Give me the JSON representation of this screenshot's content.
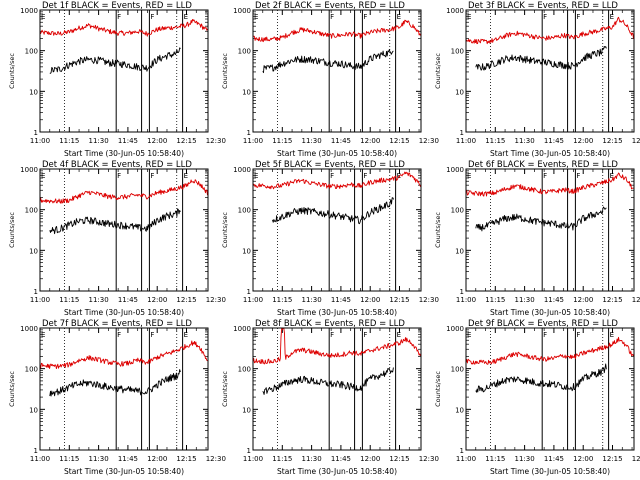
{
  "chart_data": {
    "type": "line",
    "layout": "3x3 grid of panels",
    "scale": "log-y",
    "ylim": [
      1,
      1000
    ],
    "y_ticks": [
      1,
      10,
      100,
      1000
    ],
    "y_tick_labels": [
      "1",
      "10",
      "100",
      "1000"
    ],
    "x_range_min": [
      0,
      86
    ],
    "x_ticks_min": [
      0,
      15,
      30,
      45,
      60,
      75,
      90
    ],
    "x_tick_labels": [
      "11:00",
      "11:15",
      "11:30",
      "11:45",
      "12:00",
      "12:15",
      "12:30"
    ],
    "dotted_marker_times_min": [
      12.5,
      70
    ],
    "solid_marker_times_min": [
      39,
      52,
      56,
      73
    ],
    "flag_labels": [
      {
        "t": 0,
        "text": "E"
      },
      {
        "t": 39,
        "text": "F"
      },
      {
        "t": 56,
        "text": "F"
      },
      {
        "t": 73,
        "text": "E"
      }
    ],
    "ylabel": "Counts/sec",
    "xlabel": "Start Time (30-Jun-05 10:58:40)",
    "series_colors": {
      "lld": "#dd0000",
      "events": "#000000"
    },
    "panels": [
      {
        "title": "Det 1f BLACK = Events, RED = LLD",
        "lld": {
          "t": [
            0,
            5,
            10,
            15,
            20,
            25,
            30,
            35,
            40,
            45,
            50,
            55,
            60,
            65,
            70,
            75,
            78,
            80,
            82,
            86
          ],
          "v": [
            280,
            270,
            260,
            290,
            360,
            420,
            350,
            300,
            270,
            270,
            300,
            260,
            330,
            360,
            380,
            420,
            520,
            480,
            430,
            300
          ]
        },
        "events": {
          "t": [
            5,
            10,
            15,
            20,
            25,
            30,
            35,
            40,
            45,
            50,
            55,
            60,
            65,
            70,
            72
          ],
          "v": [
            32,
            35,
            45,
            55,
            60,
            58,
            50,
            48,
            45,
            40,
            38,
            60,
            75,
            85,
            110
          ]
        }
      },
      {
        "title": "Det 2f BLACK = Events, RED = LLD",
        "lld": {
          "t": [
            0,
            5,
            10,
            15,
            20,
            25,
            30,
            35,
            40,
            45,
            50,
            55,
            60,
            65,
            70,
            75,
            78,
            80,
            82,
            86
          ],
          "v": [
            200,
            190,
            190,
            210,
            280,
            330,
            300,
            260,
            230,
            240,
            260,
            230,
            280,
            310,
            330,
            380,
            520,
            460,
            400,
            230
          ]
        },
        "events": {
          "t": [
            5,
            10,
            15,
            20,
            25,
            30,
            35,
            40,
            45,
            50,
            55,
            60,
            65,
            70,
            72
          ],
          "v": [
            35,
            38,
            48,
            58,
            62,
            60,
            55,
            50,
            48,
            42,
            40,
            62,
            78,
            90,
            115
          ]
        }
      },
      {
        "title": "Det 3f BLACK = Events, RED = LLD",
        "lld": {
          "t": [
            0,
            5,
            10,
            15,
            20,
            25,
            30,
            35,
            40,
            45,
            50,
            55,
            60,
            65,
            70,
            75,
            78,
            80,
            82,
            86
          ],
          "v": [
            180,
            170,
            165,
            180,
            230,
            270,
            250,
            220,
            200,
            210,
            240,
            210,
            260,
            290,
            330,
            380,
            600,
            520,
            420,
            210
          ]
        },
        "events": {
          "t": [
            5,
            10,
            15,
            20,
            25,
            30,
            35,
            40,
            45,
            50,
            55,
            60,
            65,
            70,
            72
          ],
          "v": [
            38,
            40,
            50,
            62,
            68,
            62,
            55,
            52,
            48,
            44,
            42,
            65,
            80,
            92,
            125
          ]
        }
      },
      {
        "title": "Det 4f BLACK = Events, RED = LLD",
        "lld": {
          "t": [
            0,
            5,
            10,
            15,
            20,
            25,
            30,
            35,
            40,
            45,
            50,
            55,
            60,
            65,
            70,
            75,
            78,
            80,
            82,
            86
          ],
          "v": [
            170,
            165,
            160,
            170,
            220,
            270,
            240,
            210,
            200,
            210,
            230,
            210,
            260,
            290,
            330,
            390,
            540,
            480,
            420,
            250
          ]
        },
        "events": {
          "t": [
            5,
            10,
            15,
            20,
            25,
            30,
            35,
            40,
            45,
            50,
            55,
            60,
            65,
            70,
            72
          ],
          "v": [
            30,
            33,
            42,
            52,
            55,
            50,
            45,
            42,
            40,
            36,
            34,
            55,
            70,
            80,
            110
          ]
        }
      },
      {
        "title": "Det 5f BLACK = Events, RED = LLD",
        "lld": {
          "t": [
            0,
            5,
            10,
            15,
            20,
            25,
            30,
            35,
            40,
            45,
            50,
            55,
            60,
            65,
            70,
            75,
            78,
            80,
            82,
            86
          ],
          "v": [
            400,
            390,
            370,
            390,
            470,
            520,
            450,
            410,
            370,
            380,
            420,
            380,
            470,
            520,
            560,
            620,
            800,
            720,
            640,
            400
          ]
        },
        "events": {
          "t": [
            10,
            15,
            20,
            25,
            30,
            35,
            40,
            45,
            50,
            55,
            60,
            65,
            70,
            72
          ],
          "v": [
            55,
            68,
            85,
            95,
            90,
            82,
            75,
            68,
            60,
            55,
            85,
            110,
            140,
            190
          ]
        }
      },
      {
        "title": "Det 6f BLACK = Events, RED = LLD",
        "lld": {
          "t": [
            0,
            5,
            10,
            15,
            20,
            25,
            30,
            35,
            40,
            45,
            50,
            55,
            60,
            65,
            70,
            75,
            78,
            80,
            82,
            86
          ],
          "v": [
            260,
            250,
            245,
            260,
            320,
            380,
            350,
            300,
            270,
            280,
            310,
            280,
            350,
            400,
            460,
            540,
            720,
            640,
            560,
            300
          ]
        },
        "events": {
          "t": [
            5,
            10,
            15,
            20,
            25,
            30,
            35,
            40,
            45,
            50,
            55,
            60,
            65,
            70,
            72
          ],
          "v": [
            35,
            38,
            48,
            60,
            65,
            60,
            52,
            48,
            45,
            40,
            38,
            60,
            75,
            90,
            120
          ]
        }
      },
      {
        "title": "Det 7f BLACK = Events, RED = LLD",
        "lld": {
          "t": [
            0,
            5,
            10,
            15,
            20,
            25,
            30,
            35,
            40,
            45,
            50,
            55,
            60,
            65,
            70,
            75,
            78,
            80,
            82,
            86
          ],
          "v": [
            120,
            115,
            115,
            125,
            160,
            185,
            165,
            145,
            130,
            135,
            160,
            140,
            190,
            230,
            280,
            360,
            430,
            400,
            330,
            150
          ]
        },
        "events": {
          "t": [
            5,
            10,
            15,
            20,
            25,
            30,
            35,
            40,
            45,
            50,
            55,
            60,
            65,
            70,
            72
          ],
          "v": [
            25,
            28,
            35,
            42,
            45,
            40,
            35,
            32,
            30,
            28,
            27,
            40,
            55,
            68,
            85
          ]
        }
      },
      {
        "title": "Det 8f BLACK = Events, RED = LLD",
        "lld": {
          "t": [
            0,
            5,
            10,
            14,
            14.5,
            16,
            16.5,
            20,
            25,
            30,
            35,
            40,
            45,
            50,
            55,
            60,
            65,
            70,
            75,
            78,
            80,
            82,
            86
          ],
          "v": [
            160,
            150,
            150,
            170,
            1000,
            1000,
            180,
            250,
            290,
            260,
            230,
            210,
            220,
            250,
            230,
            280,
            320,
            370,
            430,
            520,
            470,
            400,
            180
          ]
        },
        "events": {
          "t": [
            5,
            10,
            15,
            20,
            25,
            30,
            35,
            40,
            45,
            50,
            55,
            60,
            65,
            70,
            72
          ],
          "v": [
            28,
            32,
            40,
            50,
            55,
            50,
            45,
            42,
            40,
            36,
            34,
            55,
            70,
            85,
            105
          ]
        }
      },
      {
        "title": "Det 9f BLACK = Events, RED = LLD",
        "lld": {
          "t": [
            0,
            5,
            10,
            15,
            20,
            25,
            30,
            35,
            40,
            45,
            50,
            55,
            60,
            65,
            70,
            75,
            78,
            80,
            82,
            86
          ],
          "v": [
            150,
            145,
            140,
            150,
            190,
            230,
            210,
            185,
            170,
            180,
            210,
            190,
            240,
            280,
            330,
            400,
            520,
            460,
            380,
            180
          ]
        },
        "events": {
          "t": [
            5,
            10,
            15,
            20,
            25,
            30,
            35,
            40,
            45,
            50,
            55,
            60,
            65,
            70,
            72
          ],
          "v": [
            30,
            33,
            42,
            52,
            56,
            52,
            46,
            43,
            41,
            37,
            35,
            55,
            72,
            85,
            120
          ]
        }
      }
    ]
  }
}
